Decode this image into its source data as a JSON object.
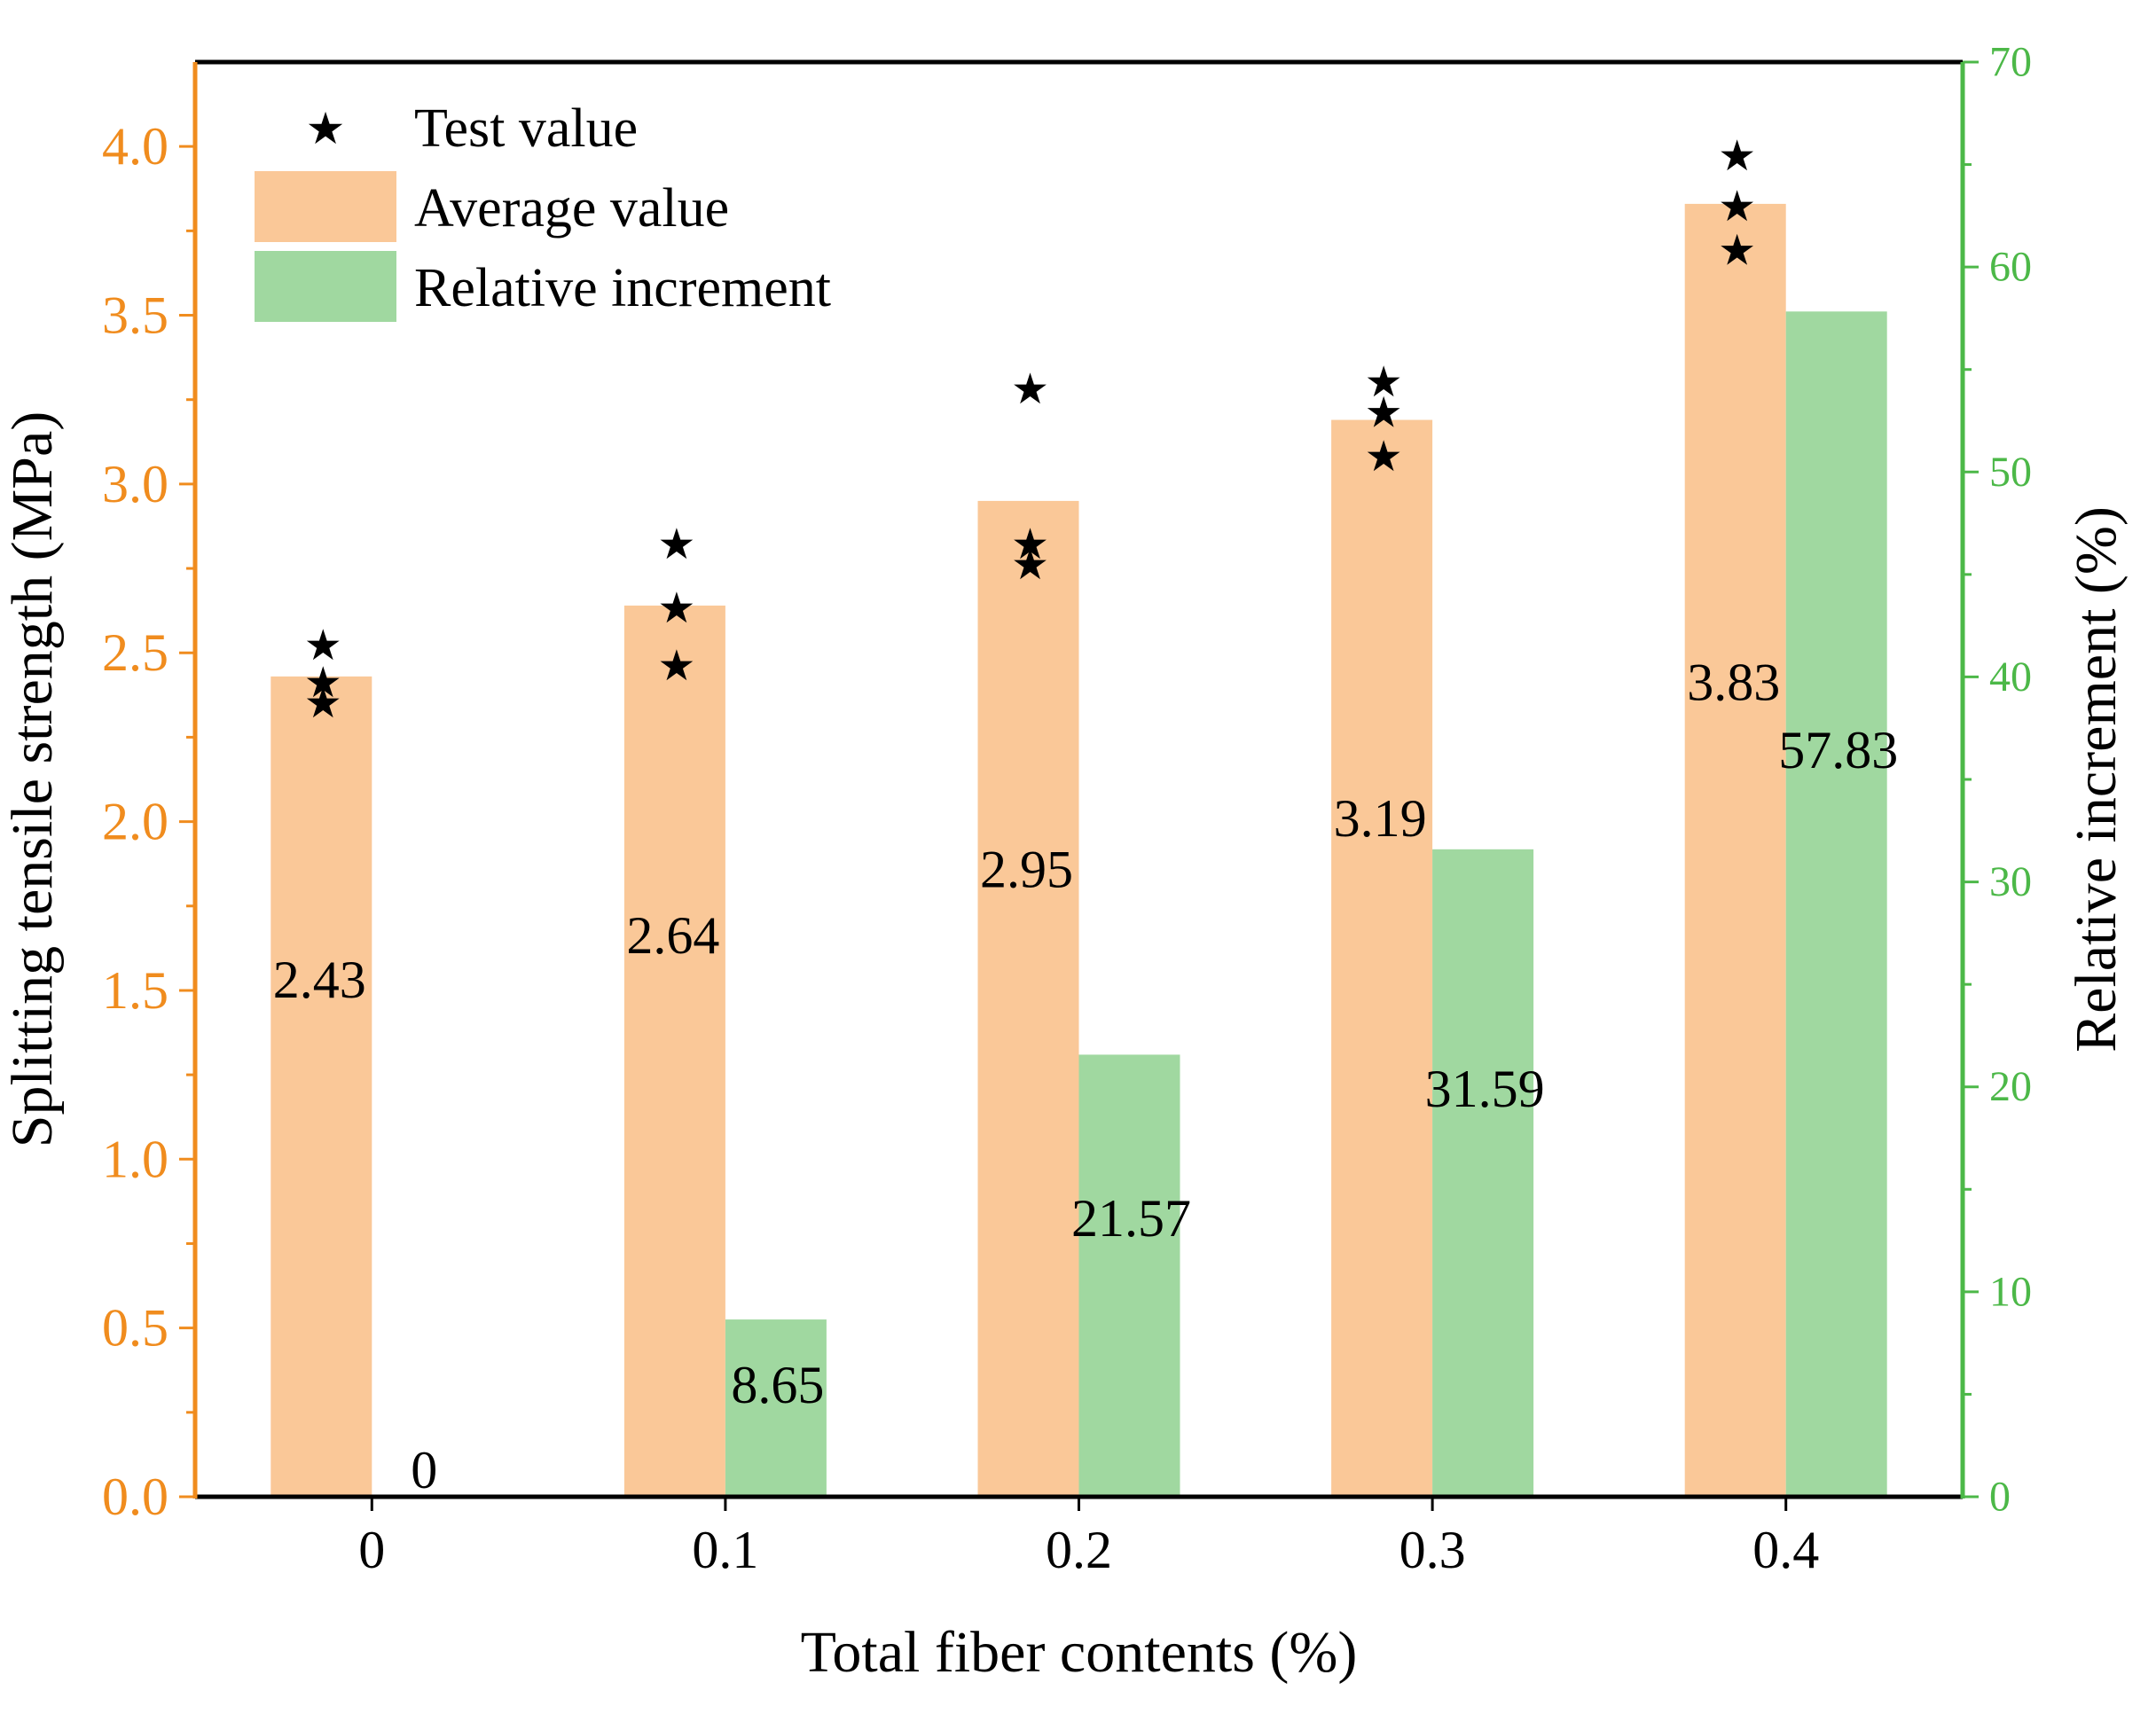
{
  "chart_data": {
    "type": "bar",
    "xlabel": "Total fiber contents (%)",
    "ylabel": "Splitting tensile strength (MPa)",
    "y2label": "Relative increment (%)",
    "categories": [
      "0",
      "0.1",
      "0.2",
      "0.3",
      "0.4"
    ],
    "ylim": [
      0,
      4.25
    ],
    "y2lim": [
      0,
      70
    ],
    "yticks": [
      "0.0",
      "0.5",
      "1.0",
      "1.5",
      "2.0",
      "2.5",
      "3.0",
      "3.5",
      "4.0"
    ],
    "y2ticks": [
      "0",
      "10",
      "20",
      "30",
      "40",
      "50",
      "60",
      "70"
    ],
    "legend_position": "top-left",
    "series": [
      {
        "name": "Average value",
        "axis": "left",
        "color": "#FAC898",
        "values": [
          2.43,
          2.64,
          2.95,
          3.19,
          3.83
        ],
        "labels": [
          "2.43",
          "2.64",
          "2.95",
          "3.19",
          "3.83"
        ]
      },
      {
        "name": "Relative increment",
        "axis": "right",
        "color": "#A0D8A0",
        "values": [
          0,
          8.65,
          21.57,
          31.59,
          57.83
        ],
        "labels": [
          "0",
          "8.65",
          "21.57",
          "31.59",
          "57.83"
        ]
      }
    ],
    "test_values": {
      "name": "Test value",
      "axis": "left",
      "marker": "★",
      "points": [
        [
          2.52,
          2.41,
          2.35
        ],
        [
          2.82,
          2.63,
          2.46
        ],
        [
          3.28,
          2.82,
          2.76
        ],
        [
          3.3,
          3.21,
          3.08
        ],
        [
          3.97,
          3.82,
          3.69
        ]
      ]
    },
    "colors": {
      "left_axis": "#F08C1E",
      "right_axis": "#4CB848",
      "frame": "#000000"
    }
  }
}
